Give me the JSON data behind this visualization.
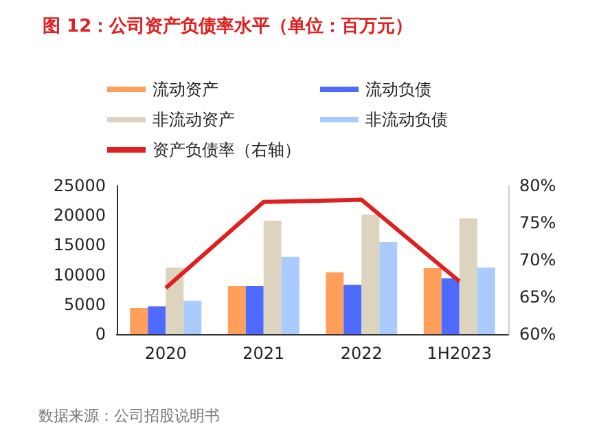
{
  "chart_data": {
    "type": "bar",
    "title": "图 12：公司资产负债率水平（单位：百万元）",
    "categories": [
      "2020",
      "2021",
      "2022",
      "1H2023"
    ],
    "series": [
      {
        "name": "流动资产",
        "color": "#ff9f5a",
        "values": [
          4400,
          8100,
          10400,
          11100
        ]
      },
      {
        "name": "流动负债",
        "color": "#4f6bff",
        "values": [
          4700,
          8100,
          8300,
          9400
        ]
      },
      {
        "name": "非流动资产",
        "color": "#ddd4bf",
        "values": [
          11200,
          19100,
          20100,
          19500
        ]
      },
      {
        "name": "非流动负债",
        "color": "#a9cbff",
        "values": [
          5600,
          13000,
          15500,
          11200
        ]
      },
      {
        "name": "资产负债率（右轴）",
        "type": "line",
        "axis": "y2",
        "color": "#e02020",
        "values": [
          66.2,
          77.8,
          78.1,
          67.1
        ]
      }
    ],
    "ylim": [
      0,
      25000
    ],
    "yticks": [
      0,
      5000,
      10000,
      15000,
      20000,
      25000
    ],
    "y2lim": [
      60,
      80
    ],
    "y2ticks": [
      {
        "value": 60,
        "label": "60%"
      },
      {
        "value": 65,
        "label": "65%"
      },
      {
        "value": 70,
        "label": "70%"
      },
      {
        "value": 75,
        "label": "75%"
      },
      {
        "value": 80,
        "label": "80%"
      }
    ],
    "grid": false,
    "legend": "top",
    "marker": "none",
    "annotations": [
      "数据来源：公司招股说明书"
    ]
  }
}
